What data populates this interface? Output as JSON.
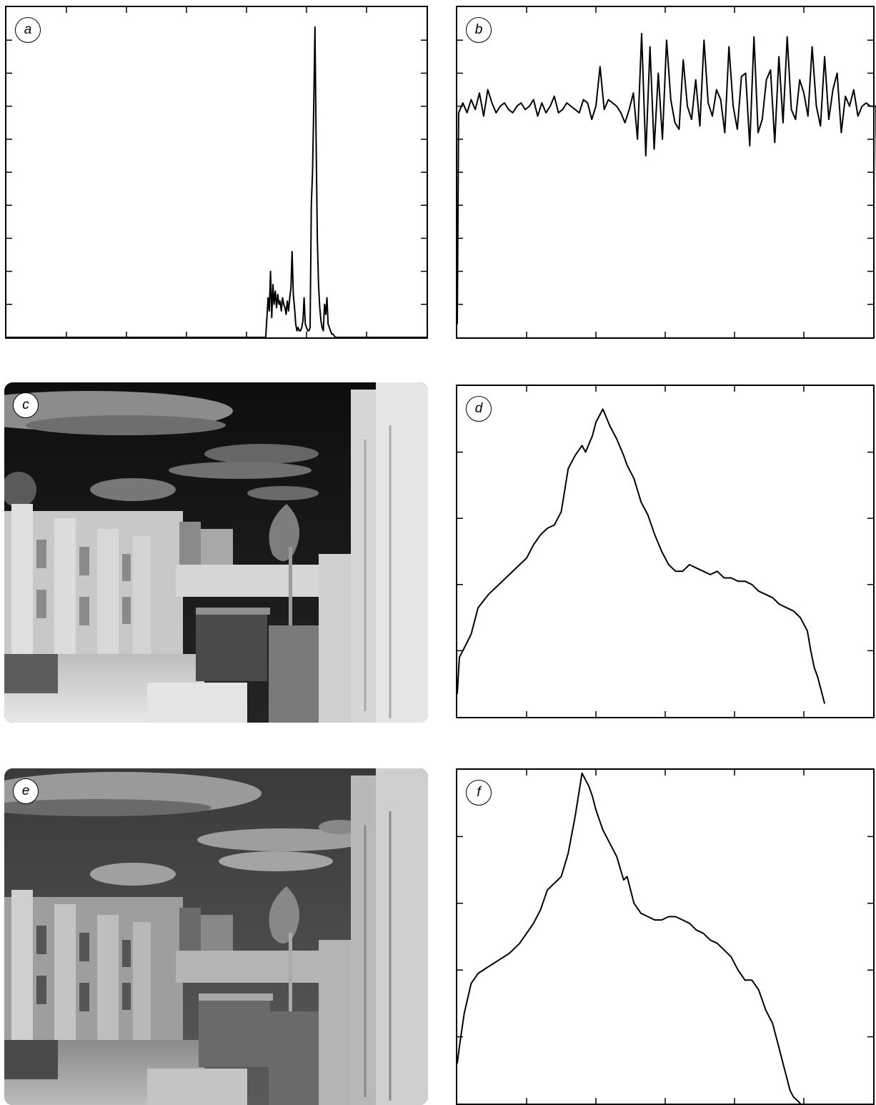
{
  "panels": {
    "a": {
      "label": "a"
    },
    "b": {
      "label": "b"
    },
    "c": {
      "label": "c"
    },
    "d": {
      "label": "d"
    },
    "e": {
      "label": "e"
    },
    "f": {
      "label": "f"
    }
  },
  "chart_data": [
    {
      "id": "a",
      "type": "line",
      "title": "",
      "xlabel": "",
      "ylabel": "",
      "xlim": [
        0,
        700
      ],
      "ylim": [
        0,
        100
      ],
      "xticks": 7,
      "yticks": 10,
      "grid": false,
      "series": [
        {
          "x": [
            0,
            432,
            436,
            438,
            440,
            442,
            444,
            446,
            448,
            450,
            452,
            454,
            456,
            458,
            460,
            462,
            464,
            466,
            468,
            470,
            472,
            474,
            476,
            478,
            480,
            482,
            484,
            486,
            488,
            490,
            492,
            494,
            496,
            498,
            500,
            502,
            504,
            506,
            508,
            510,
            512,
            514,
            516,
            518,
            520,
            522,
            524,
            526,
            528,
            530,
            532,
            534,
            536,
            538,
            540,
            542,
            544,
            546,
            548,
            550,
            700
          ],
          "y": [
            0,
            0,
            12,
            8,
            20,
            6,
            16,
            10,
            14,
            9,
            13,
            10,
            11,
            8,
            12,
            10,
            9,
            7,
            11,
            8,
            12,
            15,
            26,
            13,
            9,
            4,
            2,
            3,
            2,
            2,
            3,
            5,
            12,
            4,
            3,
            2,
            2,
            3,
            40,
            50,
            70,
            94,
            60,
            30,
            16,
            9,
            5,
            3,
            2,
            10,
            7,
            12,
            4,
            3,
            2,
            1,
            1,
            0.5,
            0,
            0,
            0
          ]
        }
      ]
    },
    {
      "id": "b",
      "type": "line",
      "title": "",
      "xlabel": "",
      "ylabel": "",
      "xlim": [
        0,
        600
      ],
      "ylim": [
        0,
        100
      ],
      "xticks": 6,
      "yticks": 10,
      "grid": false,
      "series": [
        {
          "x": [
            0,
            2,
            8,
            14,
            20,
            26,
            32,
            38,
            44,
            50,
            56,
            62,
            68,
            74,
            80,
            86,
            92,
            98,
            104,
            110,
            116,
            122,
            128,
            134,
            140,
            146,
            152,
            158,
            164,
            170,
            176,
            182,
            188,
            194,
            200,
            206,
            212,
            218,
            224,
            230,
            236,
            242,
            248,
            254,
            260,
            266,
            272,
            278,
            284,
            290,
            296,
            302,
            308,
            314,
            320,
            326,
            332,
            338,
            344,
            350,
            356,
            362,
            368,
            374,
            380,
            386,
            392,
            398,
            404,
            410,
            416,
            422,
            428,
            434,
            440,
            446,
            452,
            458,
            464,
            470,
            476,
            482,
            488,
            494,
            500,
            506,
            512,
            518,
            524,
            530,
            536,
            542,
            548,
            554,
            560,
            566,
            572,
            578,
            584,
            590,
            596,
            600,
            604,
            607
          ],
          "y": [
            4,
            68,
            71,
            68,
            72,
            69,
            74,
            67,
            75,
            71,
            68,
            70,
            71,
            69,
            68,
            70,
            71,
            69,
            70,
            72,
            67,
            71,
            68,
            70,
            73,
            68,
            69,
            71,
            70,
            69,
            68,
            72,
            71,
            66,
            70,
            82,
            69,
            72,
            71,
            70,
            68,
            65,
            69,
            74,
            60,
            92,
            55,
            88,
            57,
            80,
            60,
            90,
            72,
            65,
            63,
            84,
            70,
            66,
            78,
            64,
            90,
            71,
            67,
            75,
            72,
            62,
            88,
            70,
            63,
            79,
            80,
            58,
            91,
            62,
            66,
            78,
            81,
            59,
            85,
            65,
            91,
            69,
            66,
            78,
            74,
            67,
            88,
            70,
            64,
            85,
            66,
            75,
            80,
            62,
            73,
            70,
            75,
            67,
            70,
            71,
            70,
            70,
            70,
            4
          ]
        }
      ]
    },
    {
      "id": "d",
      "type": "line",
      "title": "",
      "xlabel": "",
      "ylabel": "",
      "xlim": [
        0,
        600
      ],
      "ylim": [
        0,
        100
      ],
      "xticks": 6,
      "yticks": 5,
      "grid": false,
      "series": [
        {
          "x": [
            0,
            3,
            8,
            20,
            30,
            45,
            60,
            75,
            90,
            100,
            110,
            120,
            130,
            140,
            150,
            160,
            170,
            180,
            185,
            195,
            200,
            210,
            220,
            230,
            240,
            245,
            255,
            265,
            275,
            285,
            295,
            305,
            315,
            325,
            335,
            345,
            355,
            365,
            375,
            385,
            395,
            405,
            415,
            425,
            435,
            445,
            455,
            465,
            475,
            485,
            490,
            495,
            500,
            505,
            510,
            515,
            520,
            525,
            530
          ],
          "y": [
            7,
            18,
            20,
            25,
            33,
            37,
            40,
            43,
            46,
            48,
            52,
            55,
            57,
            58,
            62,
            75,
            79,
            82,
            80,
            85,
            89,
            93,
            88,
            84,
            79,
            76,
            72,
            65,
            61,
            55,
            50,
            46,
            44,
            44,
            46,
            45,
            44,
            43,
            44,
            42,
            42,
            41,
            41,
            40,
            38,
            37,
            36,
            34,
            33,
            32,
            31,
            30,
            28,
            26,
            20,
            15,
            12,
            8,
            4
          ]
        }
      ]
    },
    {
      "id": "f",
      "type": "line",
      "title": "",
      "xlabel": "",
      "ylabel": "",
      "xlim": [
        0,
        600
      ],
      "ylim": [
        0,
        100
      ],
      "xticks": 6,
      "yticks": 5,
      "grid": false,
      "series": [
        {
          "x": [
            0,
            3,
            10,
            20,
            30,
            45,
            60,
            75,
            90,
            100,
            110,
            120,
            130,
            140,
            150,
            160,
            170,
            180,
            190,
            195,
            200,
            210,
            220,
            230,
            240,
            245,
            255,
            265,
            275,
            285,
            295,
            305,
            315,
            325,
            335,
            345,
            355,
            365,
            375,
            385,
            395,
            405,
            415,
            425,
            435,
            445,
            455,
            460,
            465,
            470,
            475,
            480,
            485,
            490,
            495
          ],
          "y": [
            12,
            17,
            27,
            36,
            39,
            41,
            43,
            45,
            48,
            51,
            54,
            58,
            64,
            66,
            68,
            75,
            86,
            99,
            95,
            92,
            88,
            82,
            78,
            74,
            67,
            68,
            60,
            57,
            56,
            55,
            55,
            56,
            56,
            55,
            54,
            52,
            51,
            49,
            48,
            46,
            44,
            40,
            37,
            37,
            34,
            28,
            24,
            20,
            16,
            12,
            8,
            4,
            2,
            1,
            0
          ]
        }
      ]
    }
  ]
}
